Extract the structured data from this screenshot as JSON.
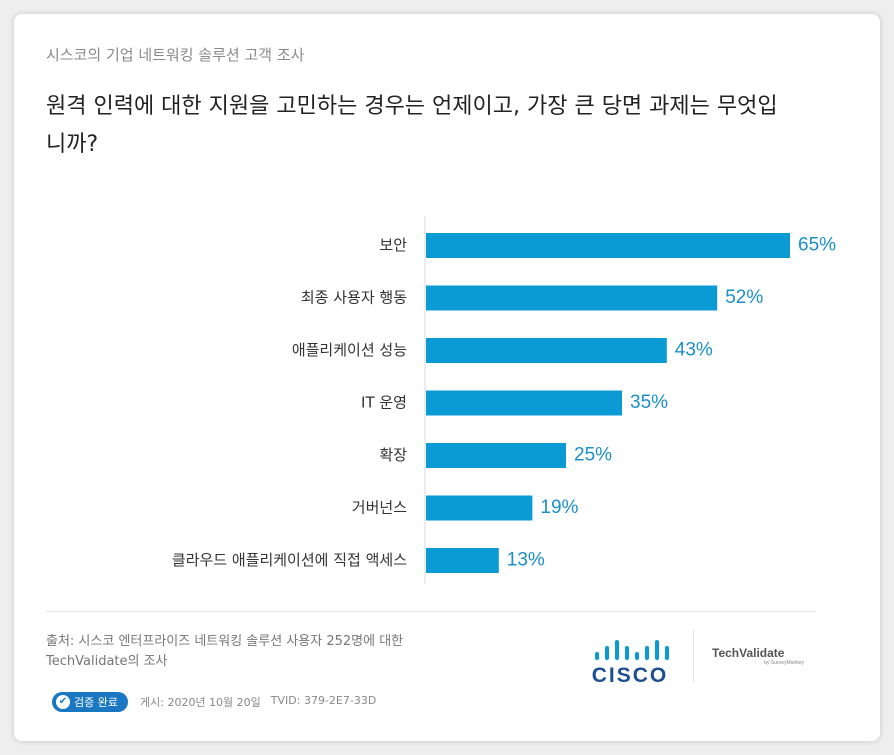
{
  "header": {
    "subtitle": "시스코의 기업 네트워킹 솔루션 고객 조사",
    "question": "원격 인력에 대한 지원을 고민하는 경우는 언제이고, 가장 큰 당면 과제는 무엇입니까?"
  },
  "chart_data": {
    "type": "bar",
    "orientation": "horizontal",
    "categories": [
      "보안",
      "최종 사용자 행동",
      "애플리케이션 성능",
      "IT 운영",
      "확장",
      "거버넌스",
      "클라우드 애플리케이션에 직접 액세스"
    ],
    "values": [
      65,
      52,
      43,
      35,
      25,
      19,
      13
    ],
    "value_labels": [
      "65%",
      "52%",
      "43%",
      "35%",
      "25%",
      "19%",
      "13%"
    ],
    "xlim": [
      0,
      100
    ],
    "grid": false,
    "bar_color": "#0a9ad4",
    "label_color": "#1a8fc9"
  },
  "footer": {
    "source": "출처: 시스코 엔터프라이즈 네트워킹 솔루션 사용자 252명에 대한 TechValidate의 조사",
    "verified_label": "검증 완료",
    "published": "게시: 2020년 10월 20일",
    "tvid": "TVID: 379-2E7-33D",
    "cisco_logo_text": "CISCO",
    "techvalidate_logo_text": "TechValidate",
    "techvalidate_by": "by SurveyMonkey",
    "cisco_brand_color": "#1d4f91",
    "badge_color": "#1a78c2"
  }
}
